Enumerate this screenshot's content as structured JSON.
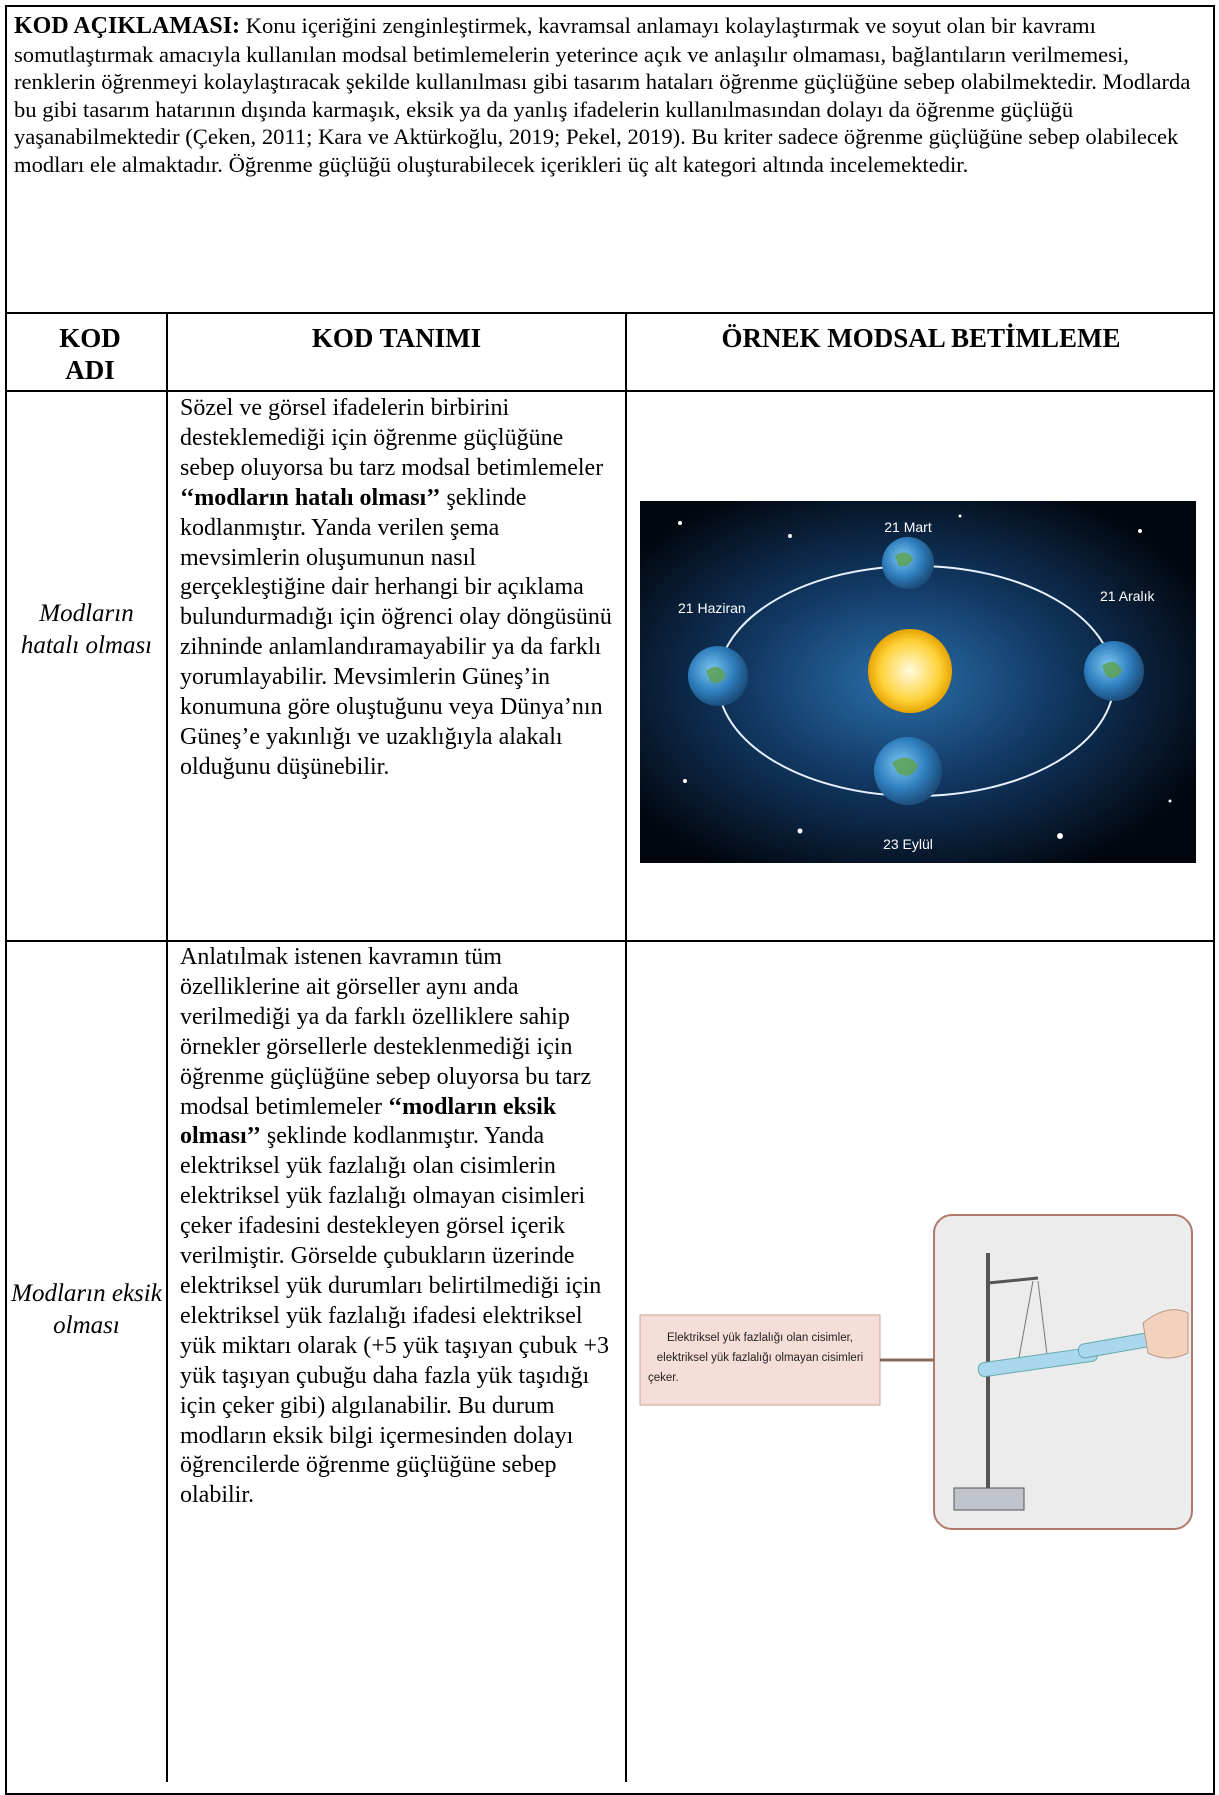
{
  "intro": {
    "label": "KOD AÇIKLAMASI:",
    "text": "Konu içeriğini zenginleştirmek, kavramsal anlamayı kolaylaştırmak ve soyut olan bir kavramı somutlaştırmak amacıyla kullanılan modsal betimlemelerin yeterince açık ve anlaşılır olmaması, bağlantıların verilmemesi, renklerin öğrenmeyi kolaylaştıracak şekilde kullanılması gibi tasarım hataları öğrenme güçlüğüne sebep olabilmektedir. Modlarda bu gibi tasarım hatarının dışında karmaşık, eksik ya da yanlış ifadelerin kullanılmasından dolayı da öğrenme güçlüğü yaşanabilmektedir (Çeken, 2011; Kara ve Aktürkoğlu, 2019; Pekel, 2019). Bu kriter sadece öğrenme güçlüğüne sebep olabilecek modları ele almaktadır. Öğrenme güçlüğü oluşturabilecek içerikleri üç alt kategori altında incelemektedir."
  },
  "table": {
    "headers": [
      "KOD ADI",
      "KOD TANIMI",
      "ÖRNEK MODSAL BETİMLEME"
    ],
    "rows": [
      {
        "name": "Modların hatalı olması",
        "definition": [
          "Sözel ve görsel ifadelerin birbirini desteklemediği için öğrenme güçlüğüne sebep oluyorsa bu tarz modsal betimlemeler ",
          "‘‘modların hatalı olması’’",
          " şeklinde kodlanmıştır. Yanda verilen şema mevsimlerin oluşumunun nasıl gerçekleştiğine dair herhangi bir açıklama bulundurmadığı için öğrenci olay döngüsünü zihninde anlamlandıramayabilir ya da farklı yorumlayabilir. Mevsimlerin Güneş’in konumuna göre oluştuğunu veya Dünya’nın Güneş’e yakınlığı ve uzaklığıyla alakalı olduğunu düşünebilir."
        ],
        "image_labels": [
          "21 Mart",
          "21 Haziran",
          "21 Aralık",
          "23 Eylül"
        ]
      },
      {
        "name": "Modların eksik olması",
        "definition": [
          "Anlatılmak istenen kavramın tüm özelliklerine ait görseller aynı anda verilmediği ya da farklı özelliklere sahip örnekler görsellerle desteklenmediği için öğrenme güçlüğüne sebep oluyorsa bu tarz modsal betimlemeler ",
          "‘‘modların eksik olması’’",
          " şeklinde kodlanmıştır. Yanda elektriksel yük fazlalığı olan cisimlerin elektriksel yük fazlalığı olmayan cisimleri çeker ifadesini destekleyen görsel içerik verilmiştir. Görselde çubukların üzerinde elektriksel yük durumları belirtilmediği için elektriksel yük fazlalığı ifadesi elektriksel yük miktarı olarak (+5 yük taşıyan çubuk +3 yük taşıyan çubuğu daha fazla yük taşıdığı için çeker gibi) algılanabilir. Bu durum modların eksik bilgi içermesinden dolayı öğrencilerde öğrenme güçlüğüne sebep olabilir."
        ],
        "image_labels": [
          "Elektriksel yük fazlalığı olan cisimler,",
          "elektriksel yük fazlalığı olmayan cisimleri",
          "çeker."
        ]
      }
    ]
  }
}
